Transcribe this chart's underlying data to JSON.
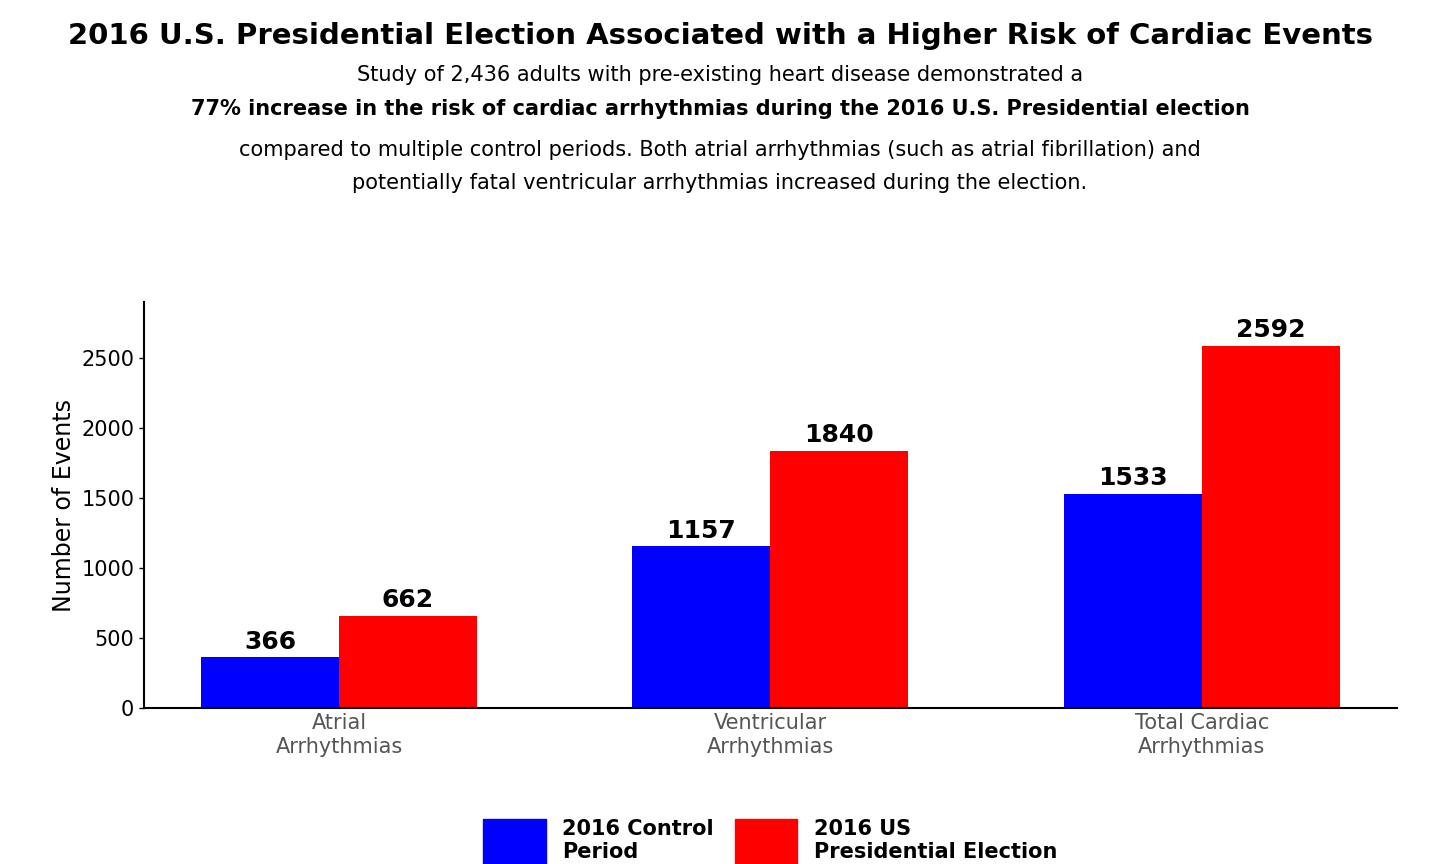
{
  "title_line1": "2016 U.S. Presidential Election Associated with a Higher Risk of Cardiac Events",
  "subtitle_line1": "Study of 2,436 adults with pre-existing heart disease demonstrated a",
  "subtitle_bold": "77% increase in the risk of cardiac arrhythmias during the 2016 U.S. Presidential election",
  "subtitle_line3": "compared to multiple control periods. Both atrial arrhythmias (such as atrial fibrillation) and",
  "subtitle_line4": "potentially fatal ventricular arrhythmias increased during the election.",
  "categories": [
    "Atrial\nArrhythmias",
    "Ventricular\nArrhythmias",
    "Total Cardiac\nArrhythmias"
  ],
  "control_values": [
    366,
    1157,
    1533
  ],
  "election_values": [
    662,
    1840,
    2592
  ],
  "control_color": "#0000FF",
  "election_color": "#FF0000",
  "ylabel": "Number of Events",
  "ylim": [
    0,
    2900
  ],
  "yticks": [
    0,
    500,
    1000,
    1500,
    2000,
    2500
  ],
  "legend_control": "2016 Control\nPeriod",
  "legend_election": "2016 US\nPresidential Election",
  "bar_width": 0.32,
  "title_fontsize": 21,
  "subtitle_fontsize": 15,
  "axis_label_fontsize": 17,
  "tick_fontsize": 15,
  "bar_label_fontsize": 18,
  "legend_fontsize": 15,
  "background_color": "#FFFFFF"
}
